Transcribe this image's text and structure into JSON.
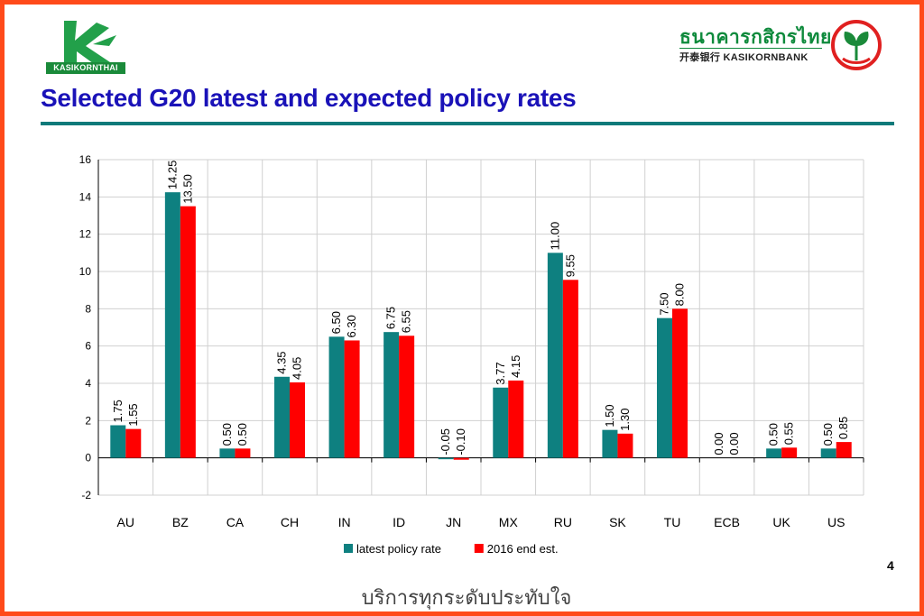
{
  "header": {
    "left_logo_label": "KASIKORNTHAI",
    "brand_thai": "ธนาคารกสิกรไทย",
    "brand_english": "开泰银行 KASIKORNBANK",
    "title": "Selected G20 latest and expected policy rates"
  },
  "footer": {
    "slogan": "บริการทุกระดับประทับใจ",
    "page_number": "4"
  },
  "colors": {
    "frame": "#ff4a1a",
    "title": "#1a12b8",
    "rule": "#0e7a7a",
    "series_latest": "#0e8080",
    "series_2016": "#ff0000",
    "logo_green": "#1a8a3a"
  },
  "chart_data": {
    "type": "bar",
    "categories": [
      "AU",
      "BZ",
      "CA",
      "CH",
      "IN",
      "ID",
      "JN",
      "MX",
      "RU",
      "SK",
      "TU",
      "ECB",
      "UK",
      "US"
    ],
    "series": [
      {
        "name": "latest policy rate",
        "values": [
          1.75,
          14.25,
          0.5,
          4.35,
          6.5,
          6.75,
          -0.05,
          3.77,
          11.0,
          1.5,
          7.5,
          0.0,
          0.5,
          0.5
        ],
        "labels": [
          "1.75",
          "14.25",
          "0.50",
          "4.35",
          "6.50",
          "6.75",
          "-0.05",
          "3.77",
          "11.00",
          "1.50",
          "7.50",
          "0.00",
          "0.50",
          "0.50"
        ]
      },
      {
        "name": "2016 end est.",
        "values": [
          1.55,
          13.5,
          0.5,
          4.05,
          6.3,
          6.55,
          -0.1,
          4.15,
          9.55,
          1.3,
          8.0,
          0.0,
          0.55,
          0.85
        ],
        "labels": [
          "1.55",
          "13.50",
          "0.50",
          "4.05",
          "6.30",
          "6.55",
          "-0.10",
          "4.15",
          "9.55",
          "1.30",
          "8.00",
          "0.00",
          "0.55",
          "0.85"
        ]
      }
    ],
    "ylim": [
      -2,
      16
    ],
    "yticks": [
      "-2",
      "0",
      "2",
      "4",
      "6",
      "8",
      "10",
      "12",
      "14",
      "16"
    ],
    "grid": true,
    "legend_position": "bottom-center",
    "title": "",
    "xlabel": "",
    "ylabel": ""
  }
}
